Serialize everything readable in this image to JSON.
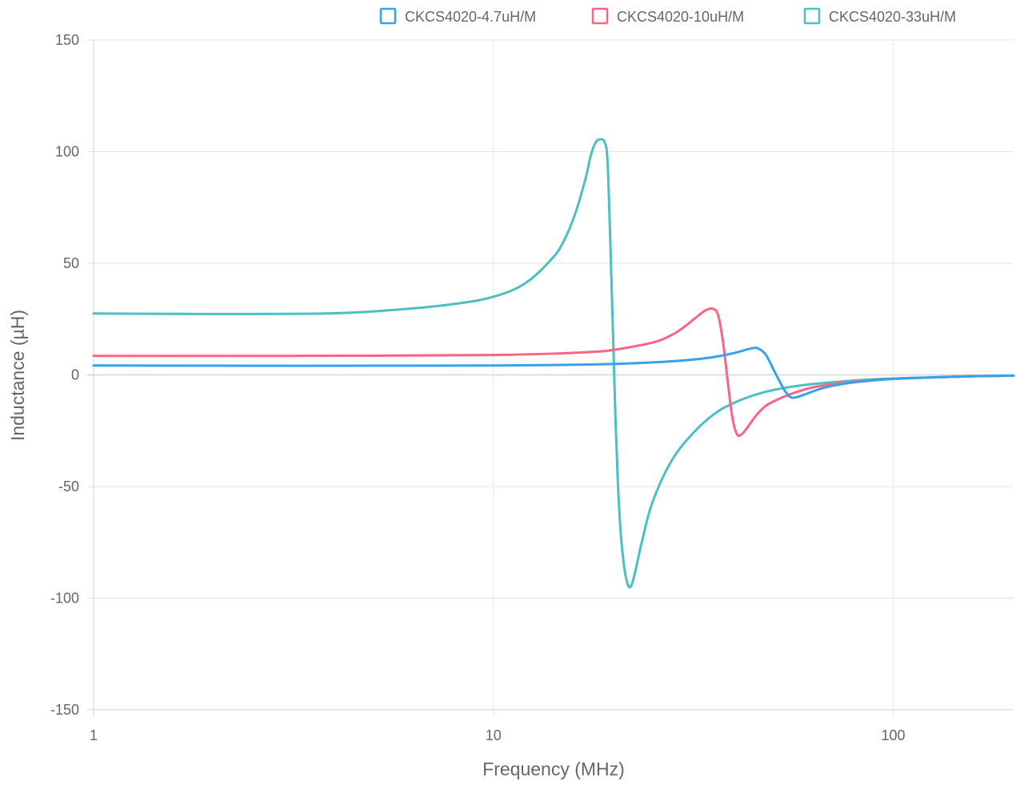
{
  "chart_data": {
    "type": "line",
    "xlabel": "Frequency (MHz)",
    "ylabel": "Inductance (µH)",
    "x_scale": "log",
    "xlim": [
      1,
      200
    ],
    "ylim": [
      -150,
      150
    ],
    "x_ticks": [
      {
        "value": 1,
        "label": "1"
      },
      {
        "value": 10,
        "label": "10"
      },
      {
        "value": 100,
        "label": "100"
      }
    ],
    "y_ticks": [
      {
        "value": 150,
        "label": "150"
      },
      {
        "value": 100,
        "label": "100"
      },
      {
        "value": 50,
        "label": "50"
      },
      {
        "value": 0,
        "label": "0"
      },
      {
        "value": -50,
        "label": "-50"
      },
      {
        "value": -100,
        "label": "-100"
      },
      {
        "value": -150,
        "label": "-150"
      }
    ],
    "grid": true,
    "legend_position": "top-right",
    "series": [
      {
        "name": "CKCS4020-4.7uH/M",
        "color": "#36a2eb",
        "points": [
          [
            1,
            4.2
          ],
          [
            2,
            4.1
          ],
          [
            5,
            4.1
          ],
          [
            10,
            4.2
          ],
          [
            15,
            4.5
          ],
          [
            20,
            4.9
          ],
          [
            25,
            5.6
          ],
          [
            30,
            6.5
          ],
          [
            35,
            7.8
          ],
          [
            40,
            9.8
          ],
          [
            44,
            11.8
          ],
          [
            46,
            11.8
          ],
          [
            48,
            9.0
          ],
          [
            50,
            3.0
          ],
          [
            52,
            -3.0
          ],
          [
            54,
            -8.0
          ],
          [
            56,
            -10.2
          ],
          [
            60,
            -8.8
          ],
          [
            65,
            -6.5
          ],
          [
            70,
            -5.0
          ],
          [
            80,
            -3.3
          ],
          [
            100,
            -1.8
          ],
          [
            150,
            -0.7
          ],
          [
            200,
            -0.3
          ]
        ]
      },
      {
        "name": "CKCS4020-10uH/M",
        "color": "#ff6384",
        "points": [
          [
            1,
            8.5
          ],
          [
            2,
            8.5
          ],
          [
            5,
            8.6
          ],
          [
            10,
            8.9
          ],
          [
            15,
            9.7
          ],
          [
            18,
            10.4
          ],
          [
            20,
            11.2
          ],
          [
            25,
            14.5
          ],
          [
            28,
            18.0
          ],
          [
            30,
            21.5
          ],
          [
            32,
            25.5
          ],
          [
            34,
            29.0
          ],
          [
            35.5,
            29.5
          ],
          [
            36.5,
            26.5
          ],
          [
            37.5,
            15.0
          ],
          [
            38.5,
            -2.0
          ],
          [
            39.5,
            -18.0
          ],
          [
            40.5,
            -26.0
          ],
          [
            41.5,
            -27.0
          ],
          [
            43,
            -24.0
          ],
          [
            46,
            -17.0
          ],
          [
            50,
            -12.0
          ],
          [
            60,
            -6.5
          ],
          [
            70,
            -4.2
          ],
          [
            80,
            -3.0
          ],
          [
            100,
            -1.8
          ],
          [
            150,
            -0.7
          ],
          [
            200,
            -0.3
          ]
        ]
      },
      {
        "name": "CKCS4020-33uH/M",
        "color": "#4bc0c0",
        "points": [
          [
            1,
            27.5
          ],
          [
            2,
            27.3
          ],
          [
            4,
            27.6
          ],
          [
            6,
            29.5
          ],
          [
            8,
            31.8
          ],
          [
            10,
            35.0
          ],
          [
            12,
            41.0
          ],
          [
            14,
            52.0
          ],
          [
            15,
            60.0
          ],
          [
            16,
            72.0
          ],
          [
            17,
            88.0
          ],
          [
            17.5,
            98.0
          ],
          [
            18,
            104.0
          ],
          [
            18.5,
            105.5
          ],
          [
            19,
            104.0
          ],
          [
            19.3,
            95.0
          ],
          [
            19.6,
            60.0
          ],
          [
            19.9,
            20.0
          ],
          [
            20.2,
            -20.0
          ],
          [
            20.5,
            -50.0
          ],
          [
            20.8,
            -70.0
          ],
          [
            21.2,
            -85.0
          ],
          [
            21.6,
            -93.0
          ],
          [
            22,
            -95.0
          ],
          [
            22.5,
            -90.0
          ],
          [
            23.5,
            -75.0
          ],
          [
            25,
            -57.0
          ],
          [
            28,
            -38.0
          ],
          [
            32,
            -25.0
          ],
          [
            36,
            -17.0
          ],
          [
            40,
            -12.5
          ],
          [
            45,
            -9.0
          ],
          [
            50,
            -6.8
          ],
          [
            60,
            -4.5
          ],
          [
            80,
            -2.5
          ],
          [
            100,
            -1.6
          ],
          [
            150,
            -0.7
          ],
          [
            200,
            -0.3
          ]
        ]
      }
    ]
  }
}
